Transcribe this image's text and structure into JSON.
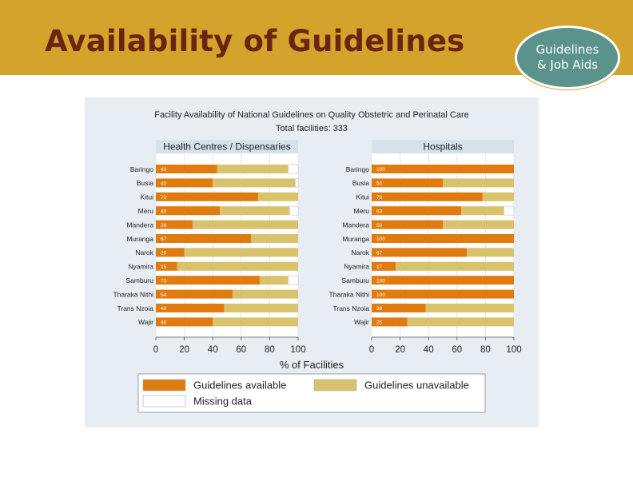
{
  "slide": {
    "title": "Availability of Guidelines",
    "badge_line1": "Guidelines",
    "badge_line2": "& Job Aids",
    "colors": {
      "banner": "#d4a32c",
      "title": "#6b2410",
      "badge": "#5a938b"
    }
  },
  "chart_data": {
    "type": "bar",
    "stacked": true,
    "orientation": "horizontal",
    "title": "Facility Availability of National Guidelines on Quality Obstetric and Perinatal Care",
    "subtitle": "Total facilities: 333",
    "xlabel": "% of Facilities",
    "xlim": [
      0,
      100
    ],
    "xticks": [
      0,
      20,
      40,
      60,
      80,
      100
    ],
    "categories": [
      "Baringo",
      "Busia",
      "Kitui",
      "Meru",
      "Mandera",
      "Muranga",
      "Narok",
      "Nyamira",
      "Samburu",
      "Tharaka Nithi",
      "Trans Nzoia",
      "Wajir"
    ],
    "colors": {
      "available": "#e07b10",
      "unavailable": "#d8c36c",
      "missing": "#ffffff"
    },
    "legend": {
      "position": "bottom",
      "items": [
        {
          "key": "available",
          "label": "Guidelines available"
        },
        {
          "key": "unavailable",
          "label": "Guidelines unavailable"
        },
        {
          "key": "missing",
          "label": "Missing data"
        }
      ]
    },
    "panels": [
      {
        "title": "Health Centres / Dispensaries",
        "available": [
          43,
          40,
          72,
          45,
          26,
          67,
          20,
          15,
          73,
          54,
          48,
          40
        ],
        "unavailable": [
          50,
          58,
          28,
          49,
          74,
          33,
          80,
          85,
          20,
          46,
          52,
          60
        ],
        "missing": [
          7,
          2,
          0,
          6,
          0,
          0,
          0,
          0,
          7,
          0,
          0,
          0
        ]
      },
      {
        "title": "Hospitals",
        "available": [
          100,
          50,
          78,
          63,
          50,
          100,
          67,
          17,
          100,
          100,
          38,
          25
        ],
        "unavailable": [
          0,
          50,
          22,
          30,
          50,
          0,
          33,
          83,
          0,
          0,
          62,
          75
        ],
        "missing": [
          0,
          0,
          0,
          7,
          0,
          0,
          0,
          0,
          0,
          0,
          0,
          0
        ]
      }
    ]
  }
}
